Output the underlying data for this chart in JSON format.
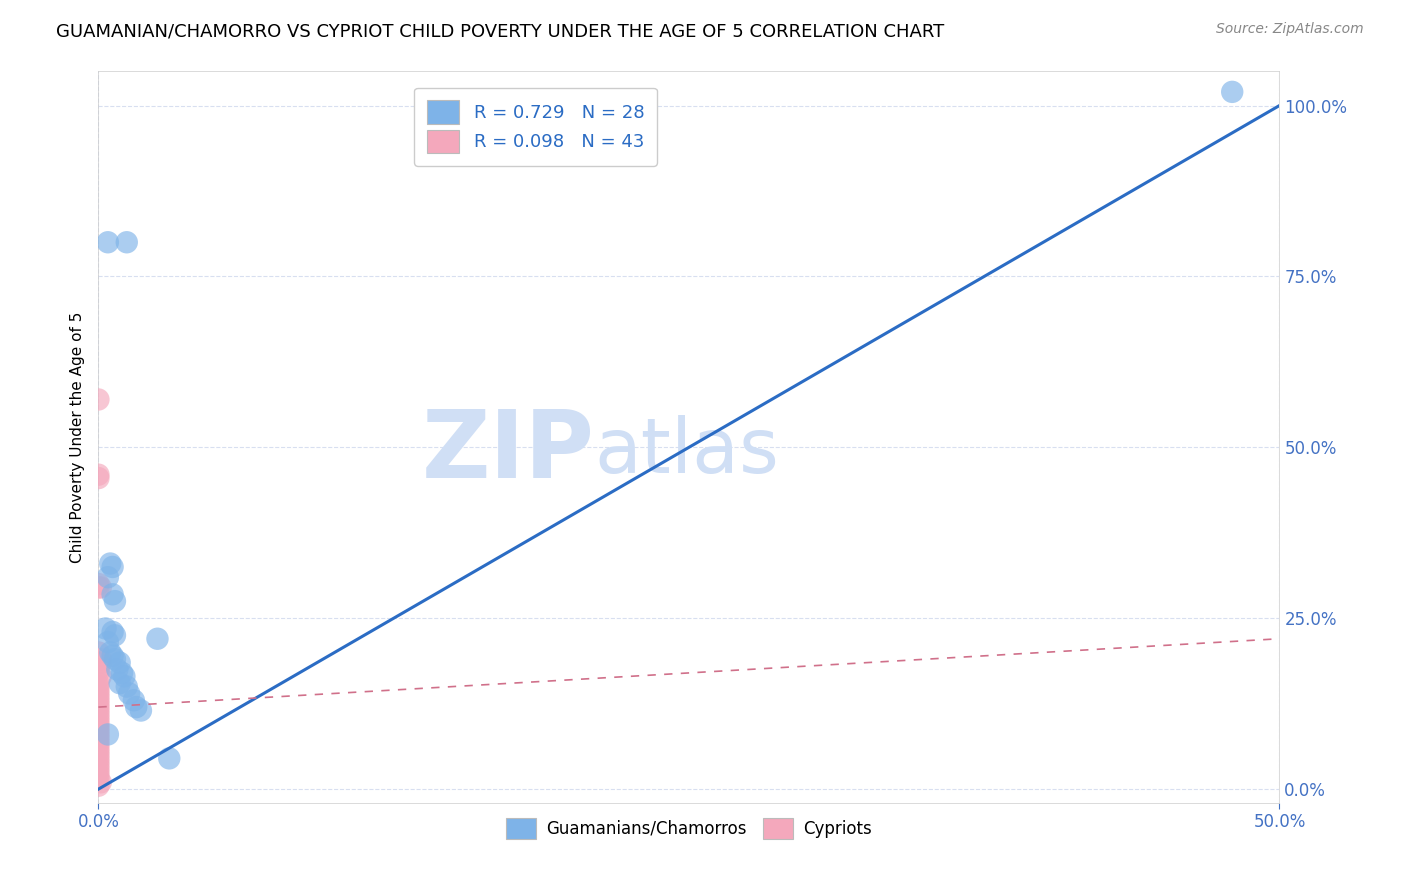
{
  "title": "GUAMANIAN/CHAMORRO VS CYPRIOT CHILD POVERTY UNDER THE AGE OF 5 CORRELATION CHART",
  "source": "Source: ZipAtlas.com",
  "ylabel": "Child Poverty Under the Age of 5",
  "xlim": [
    0,
    0.5
  ],
  "ylim": [
    -0.02,
    1.05
  ],
  "xtick_positions": [
    0.0,
    0.5
  ],
  "xtick_labels": [
    "0.0%",
    "50.0%"
  ],
  "ytick_positions": [
    0.0,
    0.25,
    0.5,
    0.75,
    1.0
  ],
  "ytick_labels": [
    "",
    "",
    "",
    "",
    ""
  ],
  "ytick_labels_right": [
    "0.0%",
    "25.0%",
    "50.0%",
    "75.0%",
    "100.0%"
  ],
  "guamanian_R": 0.729,
  "guamanian_N": 28,
  "cypriot_R": 0.098,
  "cypriot_N": 43,
  "guamanian_color": "#7EB3E8",
  "cypriot_color": "#F4A8BC",
  "guamanian_scatter": [
    [
      0.004,
      0.8
    ],
    [
      0.012,
      0.8
    ],
    [
      0.005,
      0.33
    ],
    [
      0.006,
      0.325
    ],
    [
      0.004,
      0.31
    ],
    [
      0.006,
      0.285
    ],
    [
      0.007,
      0.275
    ],
    [
      0.003,
      0.235
    ],
    [
      0.006,
      0.23
    ],
    [
      0.007,
      0.225
    ],
    [
      0.004,
      0.215
    ],
    [
      0.005,
      0.2
    ],
    [
      0.006,
      0.195
    ],
    [
      0.007,
      0.19
    ],
    [
      0.009,
      0.185
    ],
    [
      0.008,
      0.175
    ],
    [
      0.01,
      0.17
    ],
    [
      0.011,
      0.165
    ],
    [
      0.009,
      0.155
    ],
    [
      0.012,
      0.15
    ],
    [
      0.013,
      0.14
    ],
    [
      0.015,
      0.13
    ],
    [
      0.016,
      0.12
    ],
    [
      0.018,
      0.115
    ],
    [
      0.025,
      0.22
    ],
    [
      0.03,
      0.045
    ],
    [
      0.004,
      0.08
    ],
    [
      0.48,
      1.02
    ]
  ],
  "cypriot_scatter": [
    [
      0.0,
      0.57
    ],
    [
      0.0,
      0.46
    ],
    [
      0.0,
      0.455
    ],
    [
      0.0,
      0.3
    ],
    [
      0.0,
      0.295
    ],
    [
      0.001,
      0.295
    ],
    [
      0.0,
      0.2
    ],
    [
      0.001,
      0.19
    ],
    [
      0.001,
      0.185
    ],
    [
      0.0,
      0.175
    ],
    [
      0.0,
      0.17
    ],
    [
      0.001,
      0.165
    ],
    [
      0.0,
      0.155
    ],
    [
      0.0,
      0.15
    ],
    [
      0.0,
      0.145
    ],
    [
      0.0,
      0.14
    ],
    [
      0.0,
      0.135
    ],
    [
      0.0,
      0.13
    ],
    [
      0.0,
      0.125
    ],
    [
      0.0,
      0.12
    ],
    [
      0.0,
      0.115
    ],
    [
      0.0,
      0.11
    ],
    [
      0.0,
      0.105
    ],
    [
      0.0,
      0.1
    ],
    [
      0.0,
      0.095
    ],
    [
      0.0,
      0.09
    ],
    [
      0.0,
      0.085
    ],
    [
      0.0,
      0.08
    ],
    [
      0.0,
      0.075
    ],
    [
      0.0,
      0.07
    ],
    [
      0.0,
      0.065
    ],
    [
      0.0,
      0.06
    ],
    [
      0.0,
      0.055
    ],
    [
      0.0,
      0.05
    ],
    [
      0.0,
      0.045
    ],
    [
      0.0,
      0.04
    ],
    [
      0.0,
      0.035
    ],
    [
      0.0,
      0.03
    ],
    [
      0.0,
      0.025
    ],
    [
      0.0,
      0.02
    ],
    [
      0.0,
      0.015
    ],
    [
      0.0,
      0.005
    ],
    [
      0.001,
      0.01
    ]
  ],
  "blue_line_x": [
    0.0,
    0.5
  ],
  "blue_line_y": [
    0.0,
    1.0
  ],
  "pink_line_x": [
    0.0,
    0.5
  ],
  "pink_line_y": [
    0.12,
    0.22
  ],
  "watermark_zip": "ZIP",
  "watermark_atlas": "atlas",
  "watermark_color": "#D0DFF5",
  "legend_label_1": "R = 0.729   N = 28",
  "legend_label_2": "R = 0.098   N = 43",
  "legend_label_bottom_1": "Guamanians/Chamorros",
  "legend_label_bottom_2": "Cypriots",
  "background_color": "#FFFFFF",
  "grid_color": "#D8DFF0",
  "tick_color": "#4472c4",
  "title_fontsize": 13,
  "axis_label_fontsize": 11,
  "tick_fontsize": 12,
  "source_fontsize": 10
}
